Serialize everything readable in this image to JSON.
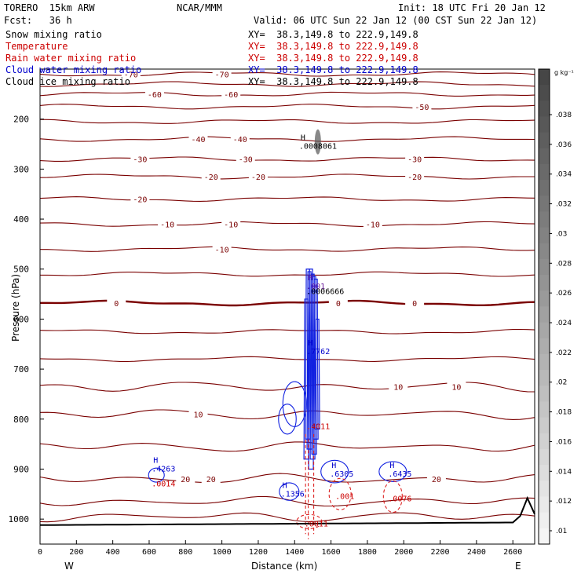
{
  "header": {
    "model": "TORERO  15km ARW",
    "center": "NCAR/MMM",
    "init": "Init: 18 UTC Fri 20 Jan 12",
    "fcst": "Fcst:   36 h",
    "valid": "Valid: 06 UTC Sun 22 Jan 12 (00 CST Sun 22 Jan 12)"
  },
  "fields": [
    {
      "name": "Snow mixing ratio",
      "xy": "XY=  38.3,149.8 to 222.9,149.8",
      "color": "#000000"
    },
    {
      "name": "Temperature",
      "xy": "XY=  38.3,149.8 to 222.9,149.8",
      "color": "#cc0000"
    },
    {
      "name": "Rain water mixing ratio",
      "xy": "XY=  38.3,149.8 to 222.9,149.8",
      "color": "#cc0000"
    },
    {
      "name": "Cloud water mixing ratio",
      "xy": "XY=  38.3,149.8 to 222.9,149.8",
      "color": "#0000cc"
    },
    {
      "name": "Cloud ice mixing ratio",
      "xy": "XY=  38.3,149.8 to 222.9,149.8",
      "color": "#000000"
    }
  ],
  "chart_data": {
    "type": "line",
    "xlabel": "Distance (km)",
    "ylabel": "Pressure (hPa)",
    "xlim": [
      0,
      2720
    ],
    "ylim": [
      1050,
      100
    ],
    "x_ticks": [
      0,
      200,
      400,
      600,
      800,
      1000,
      1200,
      1400,
      1600,
      1800,
      2000,
      2200,
      2400,
      2600
    ],
    "y_ticks": [
      200,
      300,
      400,
      500,
      600,
      700,
      800,
      900,
      1000
    ],
    "x_end_labels": {
      "left": "W",
      "right": "E"
    },
    "isotherm_levels": [
      -70,
      -60,
      -50,
      -40,
      -30,
      -20,
      -10,
      0,
      10,
      20
    ],
    "isotherms": [
      {
        "p": 110,
        "labels": [
          {
            "x": 500,
            "text": "-70"
          },
          {
            "x": 1000,
            "text": "-70"
          }
        ]
      },
      {
        "p": 130
      },
      {
        "p": 150,
        "labels": [
          {
            "x": 630,
            "text": "-60"
          },
          {
            "x": 1050,
            "text": "-60"
          }
        ]
      },
      {
        "p": 175,
        "labels": [
          {
            "x": 2100,
            "text": "-50"
          }
        ]
      },
      {
        "p": 205
      },
      {
        "p": 240,
        "labels": [
          {
            "x": 870,
            "text": "-40"
          },
          {
            "x": 1100,
            "text": "-40"
          }
        ]
      },
      {
        "p": 280,
        "labels": [
          {
            "x": 550,
            "text": "-30"
          },
          {
            "x": 1130,
            "text": "-30"
          },
          {
            "x": 2060,
            "text": "-30"
          }
        ]
      },
      {
        "p": 315,
        "labels": [
          {
            "x": 940,
            "text": "-20"
          },
          {
            "x": 1200,
            "text": "-20"
          },
          {
            "x": 2060,
            "text": "-20"
          }
        ]
      },
      {
        "p": 360,
        "labels": [
          {
            "x": 550,
            "text": "-20"
          }
        ]
      },
      {
        "p": 410,
        "labels": [
          {
            "x": 700,
            "text": "-10"
          },
          {
            "x": 1050,
            "text": "-10"
          },
          {
            "x": 1830,
            "text": "-10"
          }
        ]
      },
      {
        "p": 460,
        "labels": [
          {
            "x": 1000,
            "text": "-10"
          }
        ]
      },
      {
        "p": 510
      },
      {
        "p": 568,
        "bold": true,
        "labels": [
          {
            "x": 420,
            "text": "0"
          },
          {
            "x": 1640,
            "text": "0"
          },
          {
            "x": 2060,
            "text": "0"
          }
        ]
      },
      {
        "p": 625
      },
      {
        "p": 680
      },
      {
        "p": 735,
        "labels": [
          {
            "x": 1970,
            "text": "10"
          },
          {
            "x": 2290,
            "text": "10"
          }
        ]
      },
      {
        "p": 790,
        "labels": [
          {
            "x": 870,
            "text": "10"
          }
        ]
      },
      {
        "p": 855
      },
      {
        "p": 920,
        "labels": [
          {
            "x": 800,
            "text": "20"
          },
          {
            "x": 940,
            "text": "20"
          },
          {
            "x": 2180,
            "text": "20"
          }
        ]
      },
      {
        "p": 965
      },
      {
        "p": 995
      }
    ],
    "extrema": [
      {
        "x": 1450,
        "p": 255,
        "mark": "H",
        "value": ".0008061",
        "color": "#000000"
      },
      {
        "x": 1490,
        "p": 535,
        "mark": "H",
        "value": ".001",
        "color": "#6a1b9a"
      },
      {
        "x": 1490,
        "p": 545,
        "mark": "",
        "value": ".0006666",
        "color": "#000000"
      },
      {
        "x": 1490,
        "p": 665,
        "mark": "H",
        "value": ".7762",
        "color": "#0000cc"
      },
      {
        "x": 1490,
        "p": 815,
        "mark": "",
        "value": ".4011",
        "color": "#cc0000"
      },
      {
        "x": 640,
        "p": 900,
        "mark": "H",
        "value": ".4263",
        "color": "#0000cc"
      },
      {
        "x": 640,
        "p": 930,
        "mark": "",
        "value": ".0014",
        "color": "#cc0000"
      },
      {
        "x": 1350,
        "p": 950,
        "mark": "H",
        "value": ".1356",
        "color": "#0000cc"
      },
      {
        "x": 1620,
        "p": 910,
        "mark": "H",
        "value": ".6305",
        "color": "#0000cc"
      },
      {
        "x": 1650,
        "p": 955,
        "mark": "",
        "value": ".001",
        "color": "#cc0000"
      },
      {
        "x": 1940,
        "p": 910,
        "mark": "H",
        "value": ".6435",
        "color": "#0000cc"
      },
      {
        "x": 1940,
        "p": 960,
        "mark": "",
        "value": ".0076",
        "color": "#cc0000"
      },
      {
        "x": 1480,
        "p": 1010,
        "mark": "",
        "value": ".0011",
        "color": "#cc0000"
      }
    ],
    "colorbar": {
      "unit": "g kg⁻¹",
      "labels": [
        ".038",
        ".036",
        ".034",
        ".032",
        ".03",
        ".028",
        ".026",
        ".024",
        ".022",
        ".02",
        ".018",
        ".016",
        ".014",
        ".012",
        ".01"
      ]
    }
  }
}
